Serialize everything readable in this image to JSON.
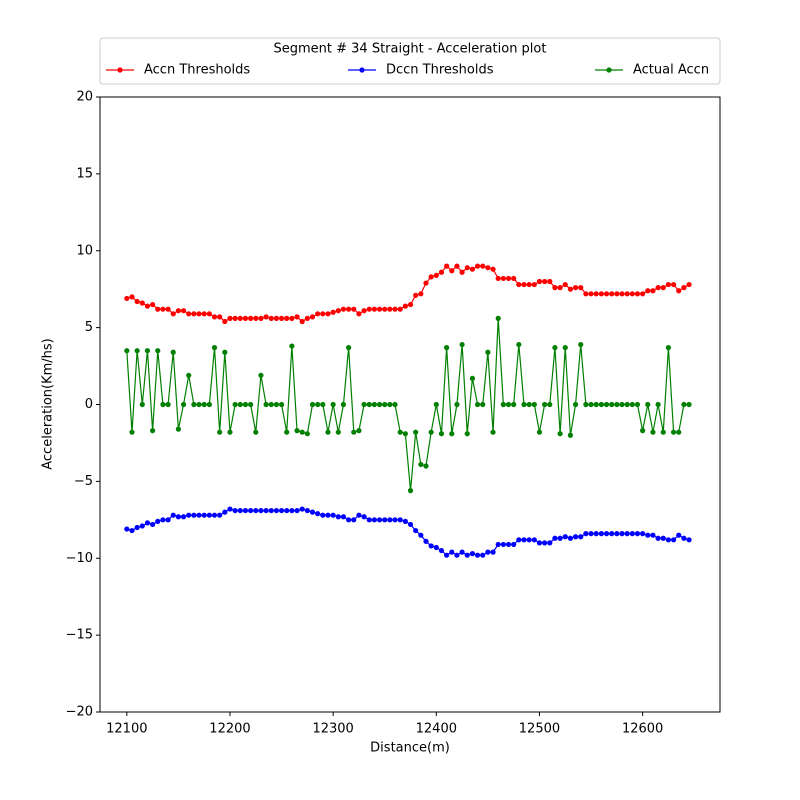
{
  "chart_data": {
    "type": "line",
    "legend_title": "Segment # 34 Straight - Acceleration plot",
    "legend_position": "top",
    "x_label": "Distance(m)",
    "y_label": "Acceleration(Km/hs)",
    "x": [
      12100,
      12105,
      12110,
      12115,
      12120,
      12125,
      12130,
      12135,
      12140,
      12145,
      12150,
      12155,
      12160,
      12165,
      12170,
      12175,
      12180,
      12185,
      12190,
      12195,
      12200,
      12205,
      12210,
      12215,
      12220,
      12225,
      12230,
      12235,
      12240,
      12245,
      12250,
      12255,
      12260,
      12265,
      12270,
      12275,
      12280,
      12285,
      12290,
      12295,
      12300,
      12305,
      12310,
      12315,
      12320,
      12325,
      12330,
      12335,
      12340,
      12345,
      12350,
      12355,
      12360,
      12365,
      12370,
      12375,
      12380,
      12385,
      12390,
      12395,
      12400,
      12405,
      12410,
      12415,
      12420,
      12425,
      12430,
      12435,
      12440,
      12445,
      12450,
      12455,
      12460,
      12465,
      12470,
      12475,
      12480,
      12485,
      12490,
      12495,
      12500,
      12505,
      12510,
      12515,
      12520,
      12525,
      12530,
      12535,
      12540,
      12545,
      12550,
      12555,
      12560,
      12565,
      12570,
      12575,
      12580,
      12585,
      12590,
      12595,
      12600,
      12605,
      12610,
      12615,
      12620,
      12625,
      12630,
      12635,
      12640,
      12645
    ],
    "series": [
      {
        "name": "Accn Thresholds",
        "color": "#ff0000",
        "values": [
          6.9,
          7.0,
          6.7,
          6.6,
          6.4,
          6.5,
          6.2,
          6.2,
          6.2,
          5.9,
          6.1,
          6.1,
          5.9,
          5.9,
          5.9,
          5.9,
          5.9,
          5.7,
          5.7,
          5.4,
          5.6,
          5.6,
          5.6,
          5.6,
          5.6,
          5.6,
          5.6,
          5.7,
          5.6,
          5.6,
          5.6,
          5.6,
          5.6,
          5.7,
          5.4,
          5.6,
          5.7,
          5.9,
          5.9,
          5.9,
          6.0,
          6.1,
          6.2,
          6.2,
          6.2,
          5.9,
          6.1,
          6.2,
          6.2,
          6.2,
          6.2,
          6.2,
          6.2,
          6.2,
          6.4,
          6.5,
          7.1,
          7.2,
          7.9,
          8.3,
          8.4,
          8.6,
          9.0,
          8.7,
          9.0,
          8.6,
          8.9,
          8.8,
          9.0,
          9.0,
          8.9,
          8.8,
          8.2,
          8.2,
          8.2,
          8.2,
          7.8,
          7.8,
          7.8,
          7.8,
          8.0,
          8.0,
          8.0,
          7.6,
          7.6,
          7.8,
          7.5,
          7.6,
          7.6,
          7.2,
          7.2,
          7.2,
          7.2,
          7.2,
          7.2,
          7.2,
          7.2,
          7.2,
          7.2,
          7.2,
          7.2,
          7.4,
          7.4,
          7.6,
          7.6,
          7.8,
          7.8,
          7.4,
          7.6,
          7.8
        ]
      },
      {
        "name": "Dccn Thresholds",
        "color": "#0000ff",
        "values": [
          -8.1,
          -8.2,
          -8.0,
          -7.9,
          -7.7,
          -7.8,
          -7.6,
          -7.5,
          -7.5,
          -7.2,
          -7.3,
          -7.3,
          -7.2,
          -7.2,
          -7.2,
          -7.2,
          -7.2,
          -7.2,
          -7.2,
          -7.0,
          -6.8,
          -6.9,
          -6.9,
          -6.9,
          -6.9,
          -6.9,
          -6.9,
          -6.9,
          -6.9,
          -6.9,
          -6.9,
          -6.9,
          -6.9,
          -6.9,
          -6.8,
          -6.9,
          -7.0,
          -7.1,
          -7.2,
          -7.2,
          -7.2,
          -7.3,
          -7.3,
          -7.5,
          -7.5,
          -7.2,
          -7.3,
          -7.5,
          -7.5,
          -7.5,
          -7.5,
          -7.5,
          -7.5,
          -7.5,
          -7.6,
          -7.8,
          -8.2,
          -8.5,
          -8.9,
          -9.2,
          -9.3,
          -9.5,
          -9.8,
          -9.6,
          -9.8,
          -9.6,
          -9.8,
          -9.7,
          -9.8,
          -9.8,
          -9.6,
          -9.6,
          -9.1,
          -9.1,
          -9.1,
          -9.1,
          -8.8,
          -8.8,
          -8.8,
          -8.8,
          -9.0,
          -9.0,
          -9.0,
          -8.7,
          -8.7,
          -8.6,
          -8.7,
          -8.6,
          -8.6,
          -8.4,
          -8.4,
          -8.4,
          -8.4,
          -8.4,
          -8.4,
          -8.4,
          -8.4,
          -8.4,
          -8.4,
          -8.4,
          -8.4,
          -8.5,
          -8.5,
          -8.7,
          -8.7,
          -8.8,
          -8.8,
          -8.5,
          -8.7,
          -8.8
        ]
      },
      {
        "name": "Actual Accn",
        "color": "#008000",
        "values": [
          3.5,
          -1.8,
          3.5,
          0,
          3.5,
          -1.7,
          3.5,
          0,
          0,
          3.4,
          -1.6,
          0,
          1.9,
          0,
          0,
          0,
          0,
          3.7,
          -1.8,
          3.4,
          -1.8,
          0,
          0,
          0,
          0,
          -1.8,
          1.9,
          0,
          0,
          0,
          0,
          -1.8,
          3.8,
          -1.7,
          -1.8,
          -1.9,
          0,
          0,
          0,
          -1.8,
          0,
          -1.8,
          0,
          3.7,
          -1.8,
          -1.7,
          0,
          0,
          0,
          0,
          0,
          0,
          0,
          -1.8,
          -1.9,
          -5.6,
          -1.8,
          -3.9,
          -4.0,
          -1.8,
          0,
          -1.9,
          3.7,
          -1.9,
          0,
          3.9,
          -1.9,
          1.7,
          0,
          0,
          3.4,
          -1.8,
          5.6,
          0,
          0,
          0,
          3.9,
          0,
          0,
          0,
          -1.8,
          0,
          0,
          3.7,
          -1.9,
          3.7,
          -2.0,
          0,
          3.9,
          0,
          0,
          0,
          0,
          0,
          0,
          0,
          0,
          0,
          0,
          0,
          -1.7,
          0,
          -1.8,
          0,
          -1.8,
          3.7,
          -1.8,
          -1.8,
          0,
          0
        ]
      }
    ],
    "xlim": [
      12074,
      12675
    ],
    "ylim": [
      -20,
      20
    ],
    "xticks": [
      12100,
      12200,
      12300,
      12400,
      12500,
      12600
    ],
    "yticks": [
      {
        "value": -20,
        "label": "−20"
      },
      {
        "value": -15,
        "label": "−15"
      },
      {
        "value": -10,
        "label": "−10"
      },
      {
        "value": -5,
        "label": "−5"
      },
      0,
      5,
      10,
      15,
      20
    ],
    "grid": false,
    "markers": true
  }
}
